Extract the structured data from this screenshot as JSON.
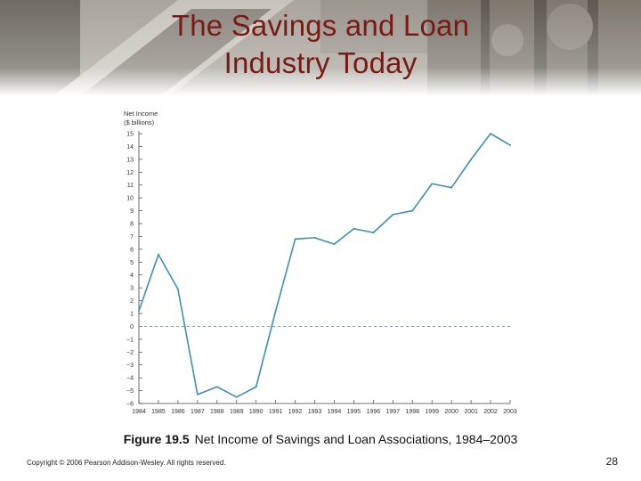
{
  "slide": {
    "title_line1": "The Savings and Loan",
    "title_line2": "Industry Today",
    "caption_number": "Figure 19.5",
    "caption_text": "Net Income of Savings and Loan Associations, 1984–2003",
    "copyright": "Copyright © 2006 Pearson Addison-Wesley. All rights reserved.",
    "page_number": "28"
  },
  "chart_data": {
    "type": "line",
    "title": "",
    "ylabel_line1": "Net Income",
    "ylabel_line2": "($ billions)",
    "xlabel": "",
    "ylim": [
      -6,
      15
    ],
    "yticks": [
      15,
      14,
      13,
      12,
      11,
      10,
      9,
      8,
      7,
      6,
      5,
      4,
      3,
      2,
      1,
      0,
      -1,
      -2,
      -3,
      -4,
      -5,
      -6
    ],
    "ytick_labels": [
      "15",
      "14",
      "13",
      "12",
      "11",
      "10",
      "9",
      "8",
      "7",
      "6",
      "5",
      "4",
      "3",
      "2",
      "1",
      "0",
      "−1",
      "−2",
      "−3",
      "−4",
      "−5",
      "−6"
    ],
    "categories": [
      "1984",
      "1985",
      "1986",
      "1987",
      "1988",
      "1989",
      "1990",
      "1991",
      "1992",
      "1993",
      "1994",
      "1995",
      "1996",
      "1997",
      "1998",
      "1999",
      "2000",
      "2001",
      "2002",
      "2003"
    ],
    "x_start": 1984,
    "x_end": 2003,
    "series": [
      {
        "x": [
          1984,
          1985,
          1986,
          1987,
          1988,
          1989,
          1990,
          1991,
          1992,
          1993,
          1994,
          1995,
          1996,
          1997,
          1998,
          1999,
          2000,
          2001,
          2002,
          2003
        ],
        "values": [
          1.2,
          5.6,
          2.9,
          -5.3,
          -4.7,
          -5.5,
          -4.7,
          1.2,
          6.8,
          6.9,
          6.4,
          7.6,
          7.3,
          8.7,
          9.0,
          11.1,
          10.8,
          13.0,
          15.0,
          14.1
        ]
      }
    ],
    "zero_line": "dashed",
    "grid": false,
    "line_color": "#3d8fb6",
    "zero_line_color": "#7a8896"
  },
  "colors": {
    "title": "#7a1a12",
    "axis": "#444444"
  }
}
